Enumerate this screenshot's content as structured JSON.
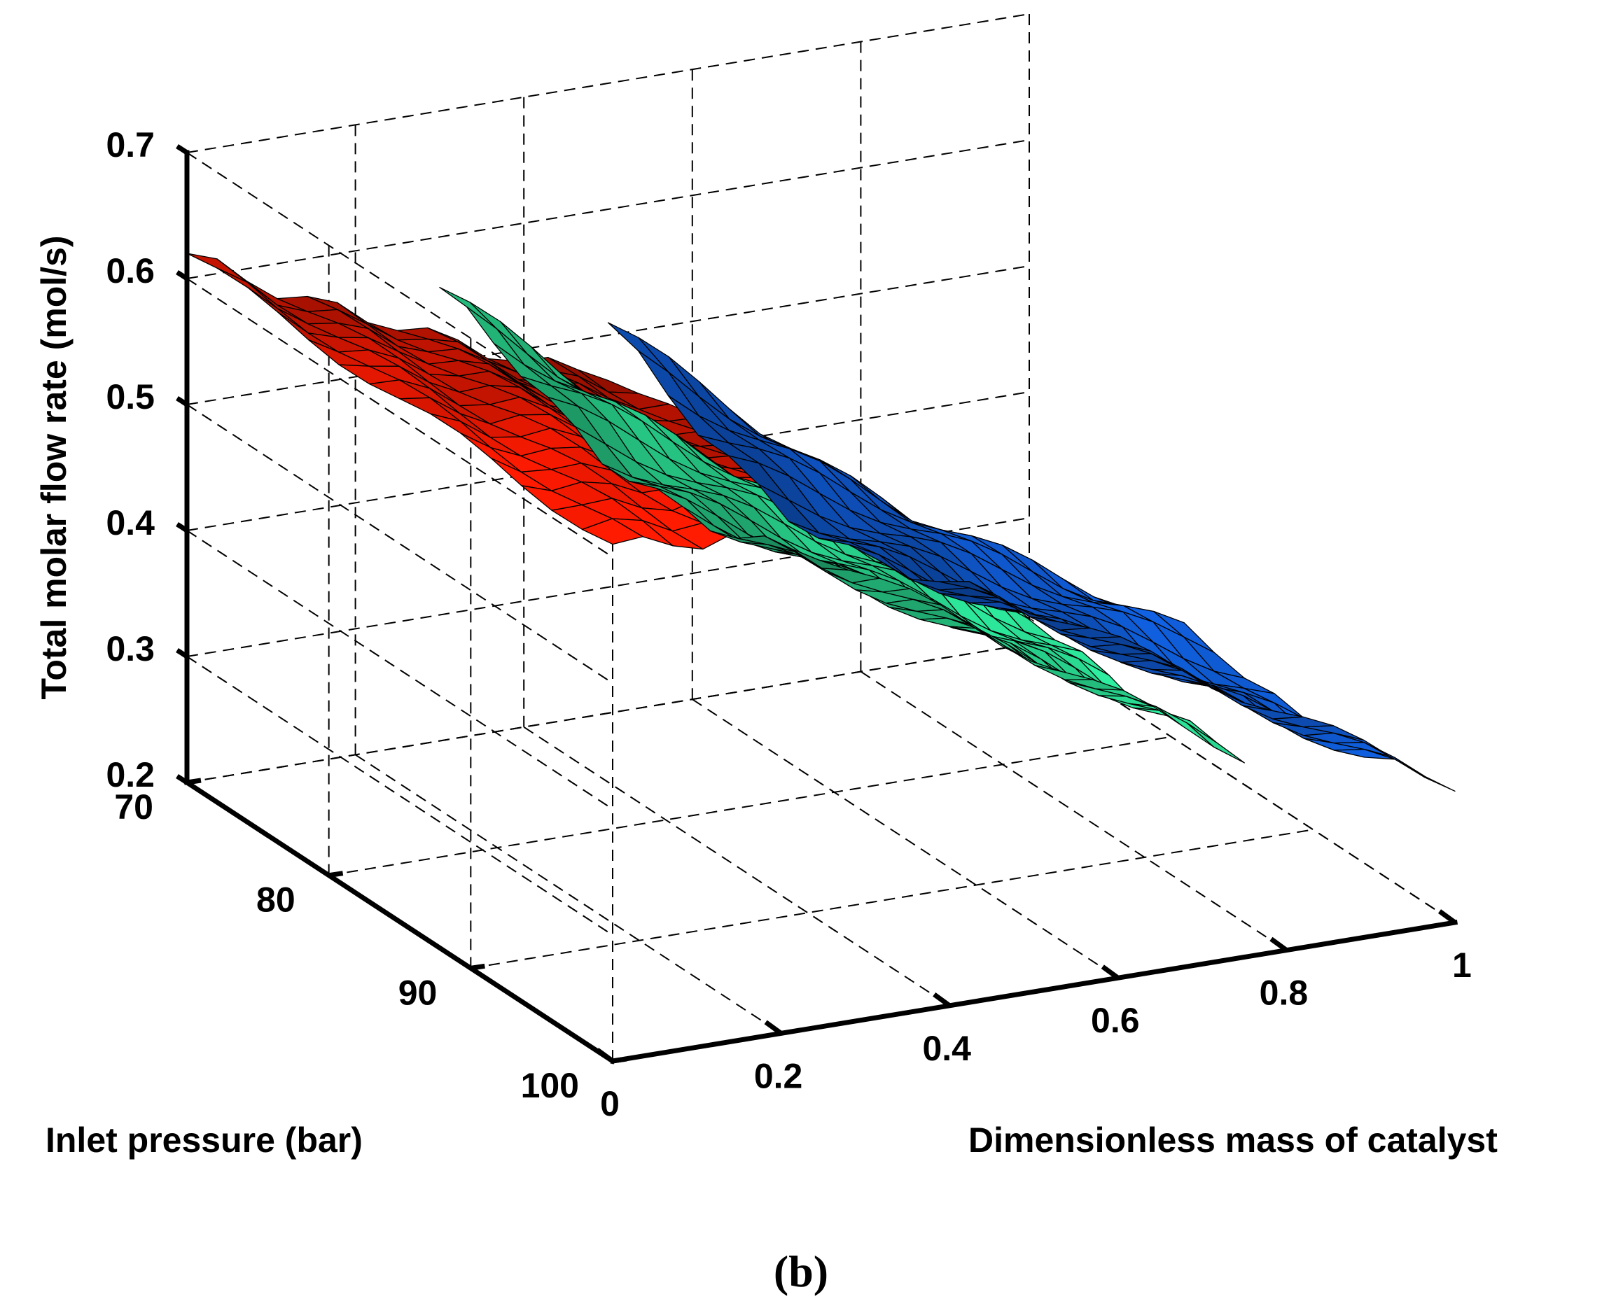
{
  "chart_data": {
    "type": "surface3d",
    "caption": "(b)",
    "xlabel": "Dimensionless mass of catalyst",
    "ylabel": "Inlet pressure (bar)",
    "zlabel": "Total molar flow rate (mol/s)",
    "xlim": [
      0,
      1
    ],
    "ylim": [
      70,
      100
    ],
    "zlim": [
      0.2,
      0.7
    ],
    "x_ticks": [
      "0",
      "0.2",
      "0.4",
      "0.6",
      "0.8",
      "1"
    ],
    "y_ticks": [
      "70",
      "80",
      "90",
      "100"
    ],
    "z_ticks": [
      "0.2",
      "0.3",
      "0.4",
      "0.5",
      "0.6",
      "0.7"
    ],
    "grid": true,
    "series": [
      {
        "name": "red surface",
        "color": "#ff1a00",
        "x_range": [
          0,
          0.5
        ],
        "y_range": [
          70,
          100
        ],
        "z_at_y70": [
          0.62,
          0.58,
          0.55,
          0.52,
          0.49,
          0.47
        ],
        "z_at_y100": [
          0.61,
          0.6,
          0.6,
          0.58,
          0.54,
          0.5
        ]
      },
      {
        "name": "green surface",
        "color": "#2ef0a0",
        "x_range": [
          0.3,
          0.75
        ],
        "y_range": [
          70,
          100
        ],
        "z_at_y70": [
          0.56,
          0.49,
          0.41,
          0.36,
          0.32,
          0.3
        ],
        "z_at_y100": [
          0.55,
          0.55,
          0.51,
          0.45,
          0.4,
          0.36
        ]
      },
      {
        "name": "blue surface",
        "color": "#1060e0",
        "x_range": [
          0.5,
          1
        ],
        "y_range": [
          70,
          100
        ],
        "z_at_y70": [
          0.51,
          0.42,
          0.34,
          0.29,
          0.26,
          0.23
        ],
        "z_at_y100": [
          0.5,
          0.5,
          0.46,
          0.39,
          0.34,
          0.31
        ]
      }
    ]
  }
}
